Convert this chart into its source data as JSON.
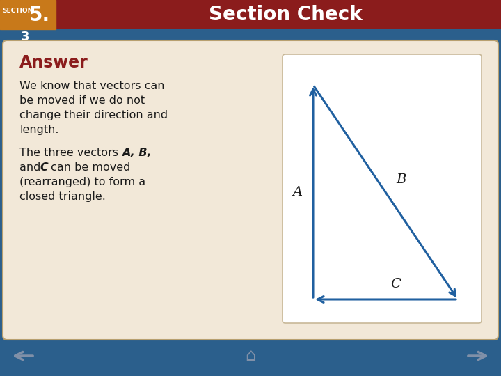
{
  "title": "Section Check",
  "section_label": "SECTION",
  "section_number": "5.",
  "section_sub": "3",
  "answer_label": "Answer",
  "text1_line1": "We know that vectors can",
  "text1_line2": "be moved if we do not",
  "text1_line3": "change their direction and",
  "text1_line4": "length.",
  "text2_line1_normal": "The three vectors ",
  "text2_line1_bold": "A, B,",
  "text2_line2a_normal": "and ",
  "text2_line2a_bold": "C",
  "text2_line2b_normal": " can be moved",
  "text2_line3": "(rearranged) to form a",
  "text2_line4": "closed triangle.",
  "bg_outer": "#2b5f8c",
  "bg_header": "#8b1c1c",
  "bg_orange": "#c8791a",
  "bg_content": "#f2e8d8",
  "bg_diagram": "#ffffff",
  "answer_color": "#8b1c1c",
  "text_color": "#1a1a1a",
  "arrow_color": "#2060a0",
  "header_text_color": "#ffffff",
  "content_border": "#b8a070",
  "diagram_border": "#c8b898",
  "footer_color": "#2b5f8c",
  "nav_arrow_color": "#8090a8"
}
